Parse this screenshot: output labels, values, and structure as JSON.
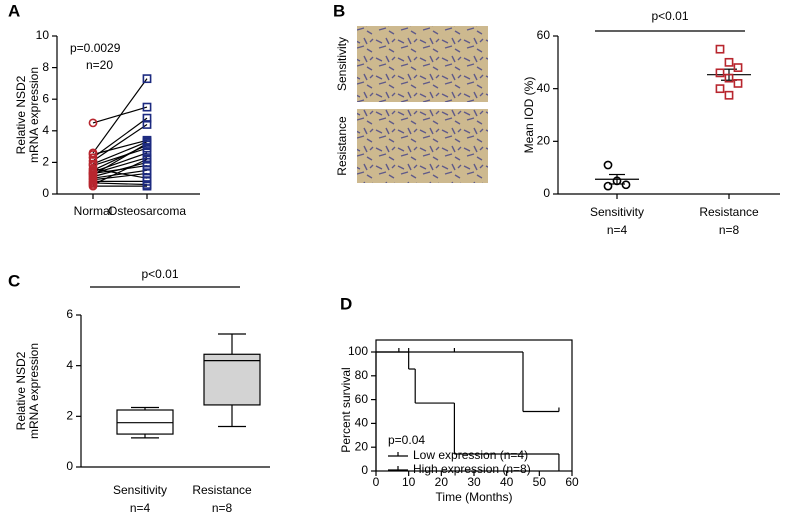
{
  "chart_data": [
    {
      "type": "paired",
      "label": "A",
      "ylabel": [
        "Relative NSD2",
        "mRNA expression"
      ],
      "annotations": [
        "p=0.0029",
        "n=20"
      ],
      "categories": [
        "Normal",
        "Osteosarcoma"
      ],
      "ylim": [
        0,
        10
      ],
      "yticks": [
        0,
        2,
        4,
        6,
        8,
        10
      ],
      "groups": [
        {
          "color": "#b8262e",
          "marker": "circle",
          "values": [
            4.5,
            2.6,
            2.5,
            2.3,
            2.1,
            1.9,
            1.8,
            1.6,
            1.5,
            1.4,
            1.3,
            1.3,
            1.2,
            1.1,
            1.0,
            0.9,
            0.8,
            0.7,
            0.6,
            0.5
          ]
        },
        {
          "color": "#1c2a80",
          "marker": "square",
          "values": [
            5.5,
            7.3,
            3.4,
            4.8,
            4.4,
            3.3,
            2.9,
            1.0,
            3.1,
            2.6,
            2.3,
            1.8,
            3.2,
            2.0,
            1.5,
            1.3,
            0.8,
            0.6,
            2.2,
            0.5
          ]
        }
      ]
    },
    {
      "type": "dot",
      "label": "B",
      "image_labels": [
        "Sensitivity",
        "Resistance"
      ],
      "ylabel": "Mean IOD (%)",
      "annotation": "p<0.01",
      "categories": [
        "Sensitivity",
        "Resistance"
      ],
      "counts": [
        "n=4",
        "n=8"
      ],
      "ylim": [
        0,
        60
      ],
      "yticks": [
        0,
        20,
        40,
        60
      ],
      "groups": [
        {
          "color": "#000000",
          "marker": "circle",
          "values": [
            11,
            5,
            3.5,
            3
          ],
          "mean": 5.6,
          "sem": 1.8
        },
        {
          "color": "#b8262e",
          "marker": "square",
          "values": [
            55,
            50,
            48,
            46,
            44,
            42,
            40,
            37.5
          ],
          "mean": 45.3,
          "sem": 2.1
        }
      ]
    },
    {
      "type": "box",
      "label": "C",
      "ylabel": [
        "Relative NSD2",
        "mRNA expression"
      ],
      "annotation": "p<0.01",
      "categories": [
        "Sensitivity",
        "Resistance"
      ],
      "counts": [
        "n=4",
        "n=8"
      ],
      "ylim": [
        0,
        6
      ],
      "yticks": [
        0,
        2,
        4,
        6
      ],
      "boxes": [
        {
          "color": "#ffffff",
          "min": 1.15,
          "q1": 1.3,
          "median": 1.75,
          "q3": 2.25,
          "max": 2.35
        },
        {
          "color": "#d3d3d3",
          "min": 1.6,
          "q1": 2.45,
          "median": 4.2,
          "q3": 4.45,
          "max": 5.25
        }
      ]
    },
    {
      "type": "survival",
      "label": "D",
      "annotation": "p=0.04",
      "xlabel": "Time (Months)",
      "ylabel": "Percent survival",
      "xlim": [
        0,
        60
      ],
      "xticks": [
        0,
        10,
        20,
        30,
        40,
        50,
        60
      ],
      "ylim": [
        0,
        100
      ],
      "yticks": [
        0,
        20,
        40,
        60,
        80,
        100
      ],
      "legend": "lower left",
      "series": [
        {
          "name": "Low expression (n=4)",
          "color": "#2020d0",
          "x": [
            0,
            45
          ],
          "values": [
            100,
            50
          ],
          "followup": 56,
          "censor_x": [
            10,
            24,
            56
          ],
          "censor_values": [
            100,
            100,
            50
          ]
        },
        {
          "name": "High expression (n=8)",
          "color": "#e02020",
          "x": [
            0,
            10,
            12,
            24,
            56
          ],
          "values": [
            100,
            85.7,
            57.1,
            14.3,
            0
          ],
          "followup": 56,
          "censor_x": [
            7
          ],
          "censor_values": [
            100
          ]
        }
      ]
    }
  ]
}
